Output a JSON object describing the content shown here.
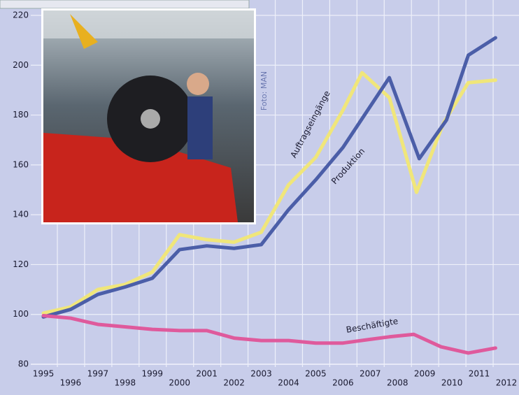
{
  "chart_data": {
    "type": "line",
    "series": [
      {
        "name": "Auftragseingänge",
        "color": "#f0e67a",
        "x": [
          1995,
          1996,
          1997,
          1998,
          1999,
          2000,
          2001,
          2002,
          2003,
          2004,
          2005,
          2006,
          2006.7,
          2007.7,
          2008.7,
          2009.7,
          2010.6,
          2011.6
        ],
        "values": [
          100.5,
          103,
          110,
          112,
          117,
          132,
          130,
          129,
          133,
          152,
          163,
          182,
          197,
          187,
          149,
          177,
          193,
          194
        ]
      },
      {
        "name": "Produktion",
        "color": "#4b5ea8",
        "x": [
          1995,
          1996,
          1997,
          1998,
          1999,
          2000,
          2001,
          2002,
          2003,
          2004,
          2005,
          2006,
          2007.7,
          2008.8,
          2009.8,
          2010.6,
          2011.6
        ],
        "values": [
          99,
          102,
          108,
          111,
          114.5,
          126,
          127.5,
          126.5,
          128,
          142,
          154,
          167,
          195,
          162.5,
          178,
          204,
          211
        ]
      },
      {
        "name": "Beschäftigte",
        "color": "#df5a9c",
        "x": [
          1995,
          1996,
          1997,
          1998,
          1999,
          2000,
          2001,
          2002,
          2003,
          2004,
          2005,
          2006,
          2007,
          2007.7,
          2008.6,
          2009.6,
          2010.6,
          2011.6
        ],
        "values": [
          99.5,
          98.5,
          96,
          95,
          94,
          93.5,
          93.5,
          90.5,
          89.5,
          89.5,
          88.5,
          88.5,
          90,
          91,
          92,
          87,
          84.5,
          86.5
        ]
      }
    ],
    "xlim": [
      1995,
      2012
    ],
    "xticks": [
      1995,
      1996,
      1997,
      1998,
      1999,
      2000,
      2001,
      2002,
      2003,
      2004,
      2005,
      2006,
      2007,
      2008,
      2009,
      2010,
      2011,
      2012
    ],
    "ylim": [
      80,
      220
    ],
    "yticks": [
      80,
      100,
      120,
      140,
      160,
      180,
      200,
      220
    ],
    "grid": true,
    "annotations": [
      "Foto: MAN"
    ]
  }
}
